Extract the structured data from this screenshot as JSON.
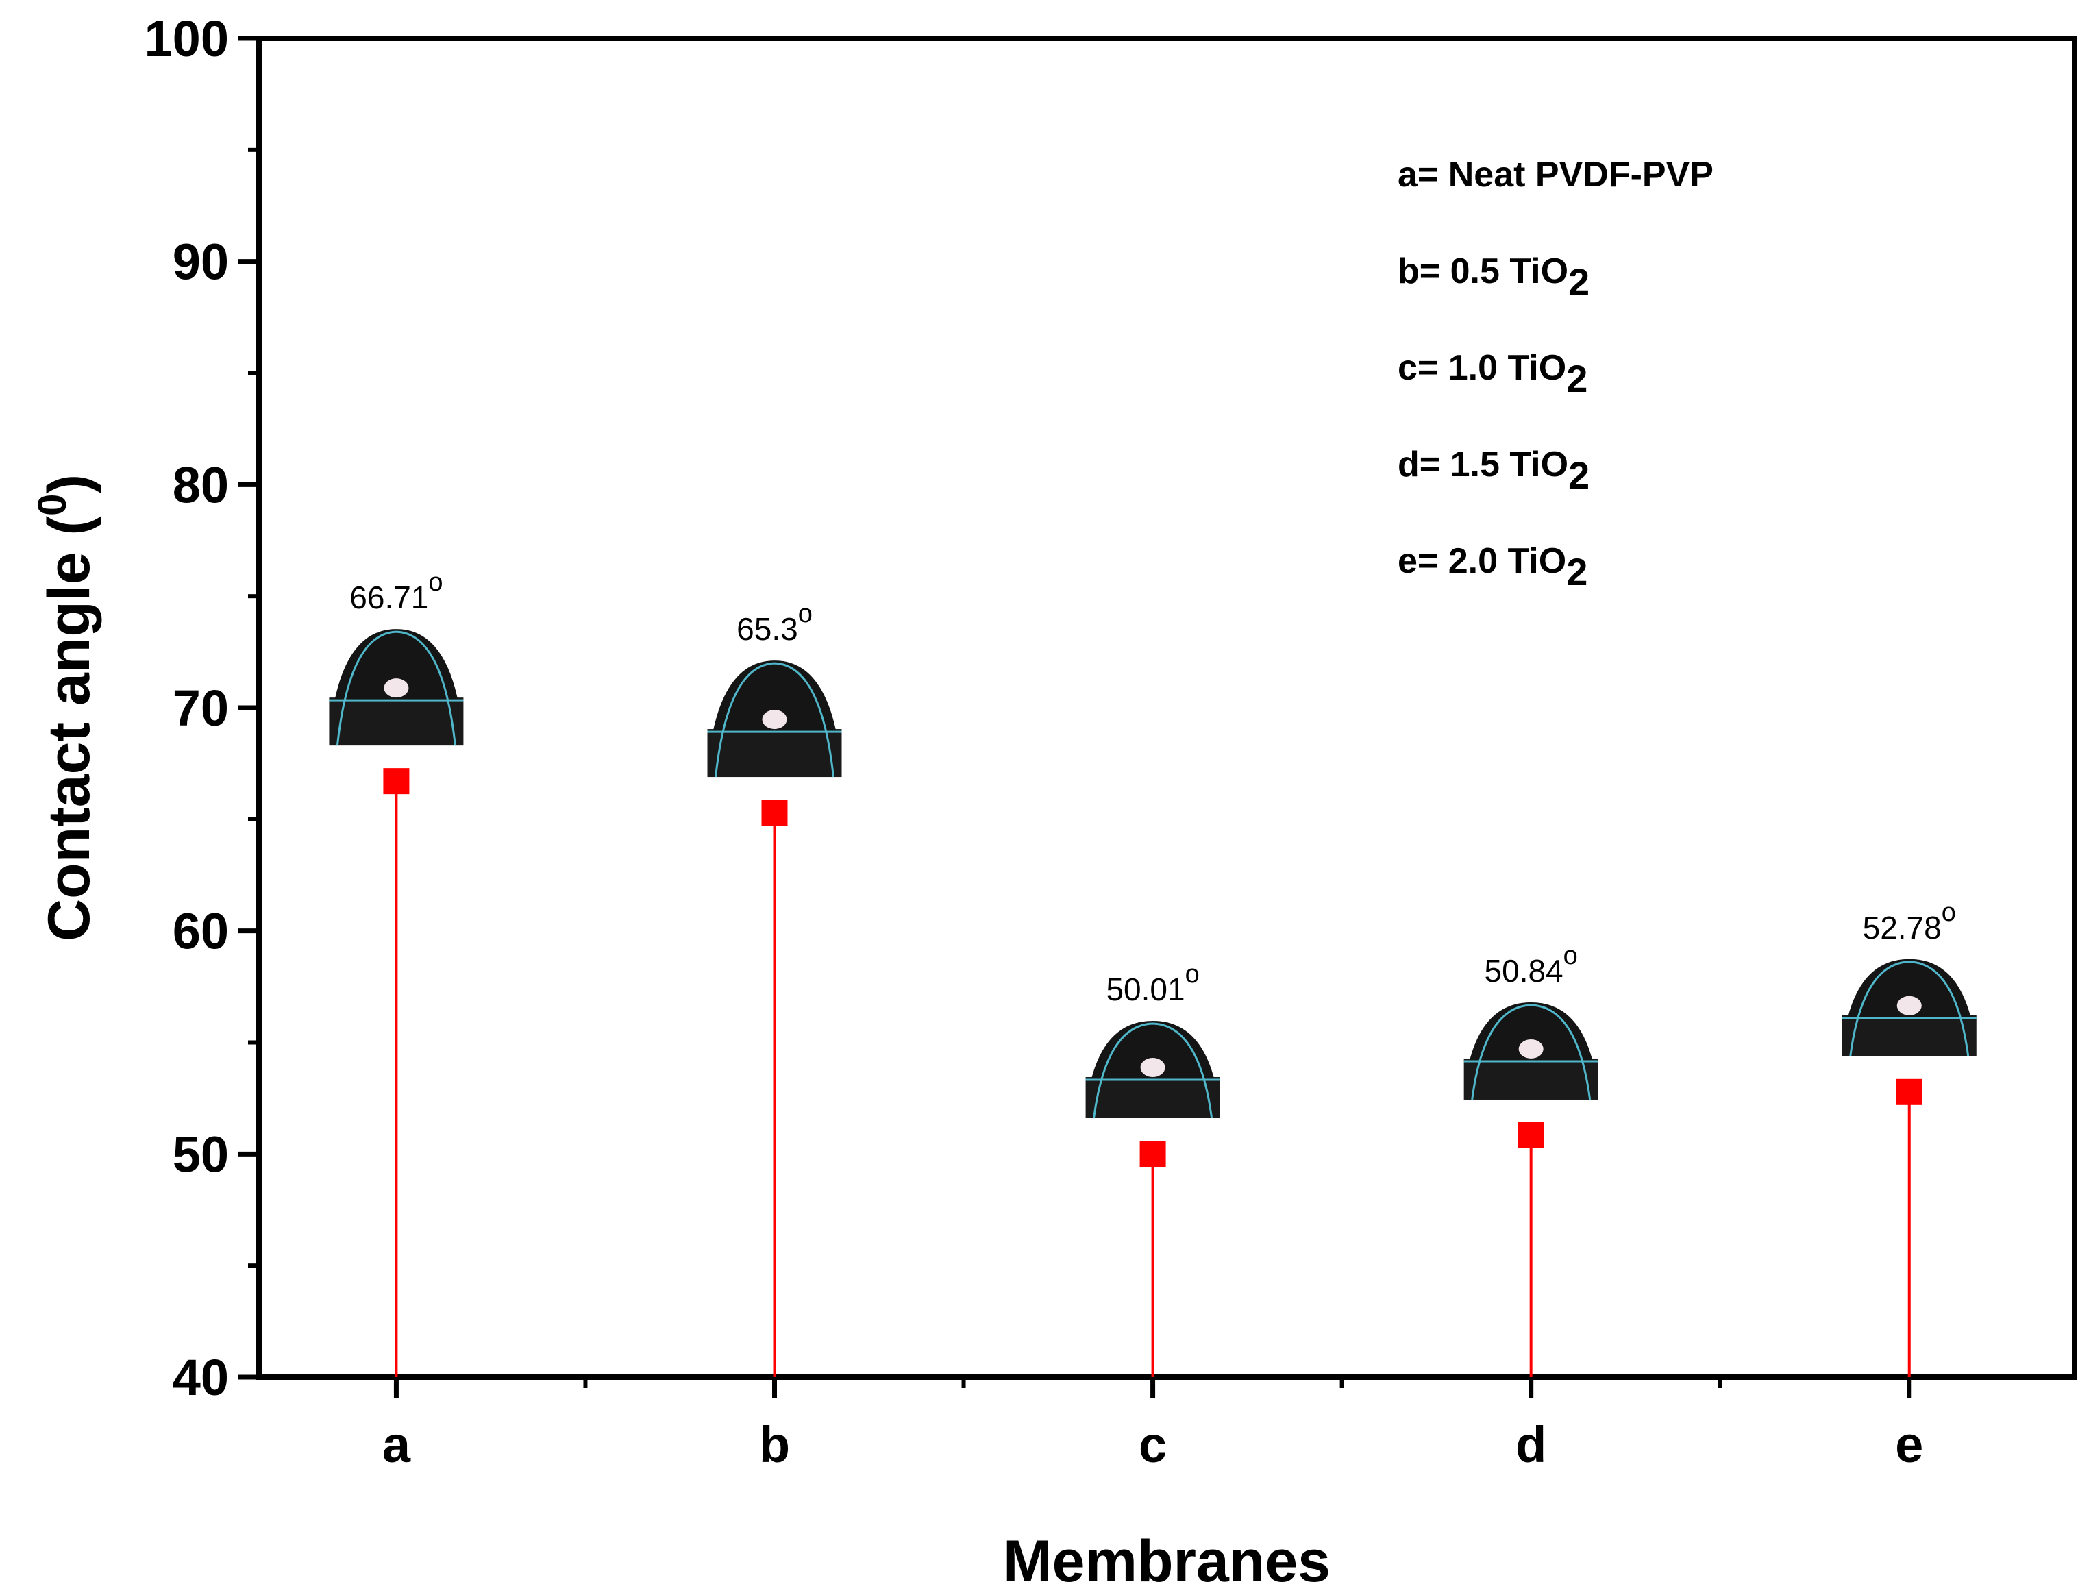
{
  "chart_data": {
    "type": "stem",
    "categories": [
      "a",
      "b",
      "c",
      "d",
      "e"
    ],
    "values": [
      66.71,
      65.3,
      50.01,
      50.84,
      52.78
    ],
    "data_labels": [
      "66.71",
      "65.3",
      "50.01",
      "50.84",
      "52.78"
    ],
    "degree_symbol": "o",
    "xlabel": "Membranes",
    "ylabel": "Contact angle (",
    "ylabel_superscript": "0",
    "ylabel_close": ")",
    "ylim": [
      40,
      100
    ],
    "yticks": [
      40,
      50,
      60,
      70,
      80,
      90,
      100
    ],
    "legend_position": "top-right",
    "legend": [
      {
        "text": "a= Neat PVDF-PVP",
        "sub": ""
      },
      {
        "text": "b= 0.5 TiO",
        "sub": "2"
      },
      {
        "text": "c= 1.0 TiO",
        "sub": "2"
      },
      {
        "text": "d= 1.5 TiO",
        "sub": "2"
      },
      {
        "text": "e= 2.0 TiO",
        "sub": "2"
      }
    ],
    "marker_color": "#ff0000",
    "stem_color": "#ff0000",
    "axis_color": "#000000"
  }
}
